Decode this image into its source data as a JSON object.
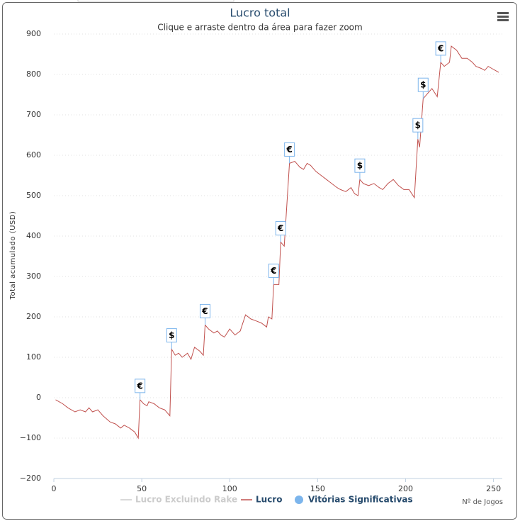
{
  "chart_data": {
    "type": "line",
    "title": "Lucro total",
    "subtitle": "Clique e arraste dentro da área para fazer zoom",
    "y_axis_label": "Total acumulado (USD)",
    "x_axis_label": "Nº de Jogos",
    "xlim": [
      0,
      255
    ],
    "xticks": [
      0,
      50,
      100,
      150,
      200,
      250
    ],
    "ylim": [
      -200,
      900
    ],
    "yticks": [
      {
        "value": -200,
        "label": "−200"
      },
      {
        "value": -100,
        "label": "−100"
      },
      0,
      100,
      200,
      300,
      400,
      500,
      600,
      700,
      800,
      900
    ],
    "grid": true,
    "x": [
      1,
      5,
      8,
      12,
      15,
      18,
      20,
      22,
      25,
      28,
      32,
      35,
      38,
      40,
      43,
      46,
      48,
      49,
      51,
      53,
      54,
      57,
      60,
      63,
      66,
      67,
      69,
      71,
      73,
      76,
      78,
      80,
      83,
      85,
      86,
      88,
      91,
      93,
      95,
      97,
      100,
      103,
      106,
      109,
      112,
      115,
      118,
      121,
      122,
      124,
      125,
      128,
      129,
      131,
      134,
      137,
      140,
      142,
      144,
      146,
      149,
      152,
      155,
      158,
      161,
      163,
      166,
      169,
      171,
      173,
      174,
      176,
      179,
      182,
      185,
      187,
      190,
      193,
      196,
      199,
      202,
      205,
      207,
      208,
      210,
      213,
      215,
      218,
      220,
      222,
      225,
      226,
      229,
      232,
      235,
      238,
      240,
      243,
      245,
      247,
      249,
      251,
      253
    ],
    "series": [
      {
        "name": "Lucro Excluindo Rake",
        "color": "#cccccc",
        "visible": false
      },
      {
        "name": "Lucro",
        "color": "#c0504d",
        "values": [
          -5,
          -15,
          -25,
          -35,
          -30,
          -35,
          -25,
          -35,
          -30,
          -45,
          -60,
          -65,
          -75,
          -68,
          -75,
          -85,
          -100,
          -5,
          -15,
          -20,
          -10,
          -15,
          -25,
          -30,
          -45,
          120,
          105,
          110,
          100,
          110,
          95,
          125,
          115,
          105,
          180,
          170,
          160,
          165,
          155,
          150,
          170,
          155,
          165,
          205,
          195,
          190,
          185,
          175,
          200,
          195,
          280,
          280,
          385,
          375,
          580,
          585,
          570,
          565,
          580,
          575,
          560,
          550,
          540,
          530,
          520,
          515,
          510,
          520,
          505,
          500,
          540,
          530,
          525,
          530,
          520,
          515,
          530,
          540,
          525,
          515,
          515,
          495,
          640,
          620,
          740,
          755,
          765,
          745,
          830,
          820,
          830,
          870,
          860,
          840,
          840,
          830,
          820,
          815,
          810,
          820,
          815,
          810,
          805
        ]
      },
      {
        "name": "Vitórias Significativas",
        "color": "#7cb5ec",
        "x": [
          49,
          67,
          86,
          125,
          129,
          134,
          174,
          207,
          210,
          220
        ],
        "values": [
          -5,
          120,
          180,
          280,
          385,
          580,
          540,
          640,
          740,
          830
        ],
        "labels": [
          "€",
          "$",
          "€",
          "€",
          "€",
          "€",
          "$",
          "$",
          "$",
          "€"
        ]
      }
    ]
  }
}
